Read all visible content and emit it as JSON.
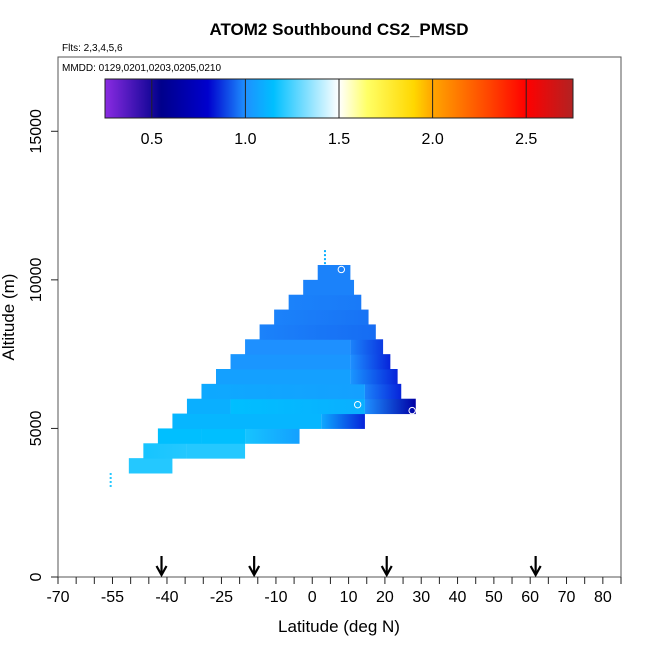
{
  "chart_data": {
    "type": "heatmap",
    "title": "ATOM2 Southbound CS2_PMSD",
    "flights_label": "Flts: 2,3,4,5,6",
    "dates_label": "MMDD: 0129,0201,0203,0205,0210",
    "xlabel": "Latitude (deg N)",
    "ylabel": "Altitude (m)",
    "xlim": [
      -70,
      85
    ],
    "ylim": [
      0,
      17500
    ],
    "x_ticks_labeled": [
      "-70",
      "-55",
      "-40",
      "-25",
      "-10",
      "0",
      "10",
      "20",
      "30",
      "40",
      "50",
      "60",
      "70",
      "80"
    ],
    "x_tick_values": [
      -70,
      -55,
      -40,
      -25,
      -10,
      0,
      10,
      20,
      30,
      40,
      50,
      60,
      70,
      80
    ],
    "x_minor_ticks": [
      -65,
      -60,
      -50,
      -45,
      -35,
      -30,
      -20,
      -15,
      -5,
      5,
      15,
      25,
      35,
      45,
      55,
      65,
      75,
      85
    ],
    "y_ticks": [
      "0",
      "5000",
      "10000",
      "15000"
    ],
    "y_tick_values": [
      0,
      5000,
      10000,
      15000
    ],
    "colorbar": {
      "range": [
        0.25,
        2.75
      ],
      "tick_values": [
        0.5,
        1.0,
        1.5,
        2.0,
        2.5
      ],
      "tick_labels": [
        "0.5",
        "1.0",
        "1.5",
        "2.0",
        "2.5"
      ],
      "stops": [
        {
          "v": 0.25,
          "c": "#8a2be2"
        },
        {
          "v": 0.55,
          "c": "#00008b"
        },
        {
          "v": 0.8,
          "c": "#0000cd"
        },
        {
          "v": 1.0,
          "c": "#1e90ff"
        },
        {
          "v": 1.15,
          "c": "#00bfff"
        },
        {
          "v": 1.5,
          "c": "#ffffff"
        },
        {
          "v": 1.65,
          "c": "#ffff66"
        },
        {
          "v": 1.9,
          "c": "#ffd700"
        },
        {
          "v": 2.0,
          "c": "#ffa500"
        },
        {
          "v": 2.3,
          "c": "#ff4500"
        },
        {
          "v": 2.5,
          "c": "#ff0000"
        },
        {
          "v": 2.75,
          "c": "#b22222"
        }
      ]
    },
    "arrow_latitudes": [
      -41.5,
      -16,
      20.5,
      61.5
    ],
    "cells": [
      {
        "lat0": -50.5,
        "lat1": -38.5,
        "alt0": 3500,
        "alt1": 4000,
        "v": [
          1.2,
          1.2
        ]
      },
      {
        "lat0": -46.5,
        "lat1": -34.5,
        "alt0": 4000,
        "alt1": 4500,
        "v": [
          1.18,
          1.2
        ]
      },
      {
        "lat0": -34.5,
        "lat1": -18.5,
        "alt0": 4000,
        "alt1": 4500,
        "v": [
          1.2,
          1.2
        ]
      },
      {
        "lat0": -42.5,
        "lat1": -30.5,
        "alt0": 4500,
        "alt1": 5000,
        "v": [
          1.15,
          1.15
        ]
      },
      {
        "lat0": -30.5,
        "lat1": -18.5,
        "alt0": 4500,
        "alt1": 5000,
        "v": [
          1.15,
          1.15
        ]
      },
      {
        "lat0": -18.5,
        "lat1": -3.5,
        "alt0": 4500,
        "alt1": 5000,
        "v": [
          1.18,
          1.05
        ]
      },
      {
        "lat0": -38.5,
        "lat1": -26.5,
        "alt0": 5000,
        "alt1": 5500,
        "v": [
          1.12,
          1.12
        ]
      },
      {
        "lat0": -26.5,
        "lat1": 2.5,
        "alt0": 5000,
        "alt1": 5500,
        "v": [
          1.12,
          1.12
        ]
      },
      {
        "lat0": 2.5,
        "lat1": 14.5,
        "alt0": 5000,
        "alt1": 5500,
        "v": [
          1.08,
          0.85
        ]
      },
      {
        "lat0": -34.5,
        "lat1": -22.5,
        "alt0": 5500,
        "alt1": 6000,
        "v": [
          1.1,
          1.1
        ]
      },
      {
        "lat0": -22.5,
        "lat1": 14.5,
        "alt0": 5500,
        "alt1": 6000,
        "v": [
          1.15,
          1.1
        ]
      },
      {
        "lat0": 14.5,
        "lat1": 28.5,
        "alt0": 5500,
        "alt1": 6000,
        "v": [
          1.0,
          0.65
        ]
      },
      {
        "lat0": -30.5,
        "lat1": 14.5,
        "alt0": 6000,
        "alt1": 6500,
        "v": [
          1.08,
          1.05
        ]
      },
      {
        "lat0": 14.5,
        "lat1": 24.5,
        "alt0": 6000,
        "alt1": 6500,
        "v": [
          0.98,
          0.85
        ]
      },
      {
        "lat0": -26.5,
        "lat1": 10.5,
        "alt0": 6500,
        "alt1": 7000,
        "v": [
          1.05,
          1.05
        ]
      },
      {
        "lat0": 10.5,
        "lat1": 23.5,
        "alt0": 6500,
        "alt1": 7000,
        "v": [
          1.02,
          0.85
        ]
      },
      {
        "lat0": -22.5,
        "lat1": 10.5,
        "alt0": 7000,
        "alt1": 7500,
        "v": [
          1.02,
          1.02
        ]
      },
      {
        "lat0": 10.5,
        "lat1": 21.5,
        "alt0": 7000,
        "alt1": 7500,
        "v": [
          1.0,
          0.85
        ]
      },
      {
        "lat0": -18.5,
        "lat1": 10.5,
        "alt0": 7500,
        "alt1": 8000,
        "v": [
          1.0,
          1.0
        ]
      },
      {
        "lat0": 10.5,
        "lat1": 19.5,
        "alt0": 7500,
        "alt1": 8000,
        "v": [
          0.98,
          0.88
        ]
      },
      {
        "lat0": -14.5,
        "lat1": 17.5,
        "alt0": 8000,
        "alt1": 8500,
        "v": [
          0.98,
          0.95
        ]
      },
      {
        "lat0": -10.5,
        "lat1": 15.5,
        "alt0": 8500,
        "alt1": 9000,
        "v": [
          0.98,
          0.96
        ]
      },
      {
        "lat0": -6.5,
        "lat1": 13.5,
        "alt0": 9000,
        "alt1": 9500,
        "v": [
          0.98,
          0.97
        ]
      },
      {
        "lat0": -2.5,
        "lat1": 11.5,
        "alt0": 9500,
        "alt1": 10000,
        "v": [
          0.98,
          0.98
        ]
      },
      {
        "lat0": 1.5,
        "lat1": 10.5,
        "alt0": 10000,
        "alt1": 10500,
        "v": [
          0.98,
          0.98
        ]
      }
    ],
    "isolated_points": [
      {
        "lat": -55.5,
        "alt0": 3000,
        "alt1": 3500,
        "v": 1.2
      },
      {
        "lat": 3.5,
        "alt0": 10500,
        "alt1": 11000,
        "v": 1.1
      }
    ],
    "circles": [
      {
        "lat": 8,
        "alt": 10350
      },
      {
        "lat": 12.5,
        "alt": 5800
      },
      {
        "lat": 27.5,
        "alt": 5600
      }
    ]
  }
}
